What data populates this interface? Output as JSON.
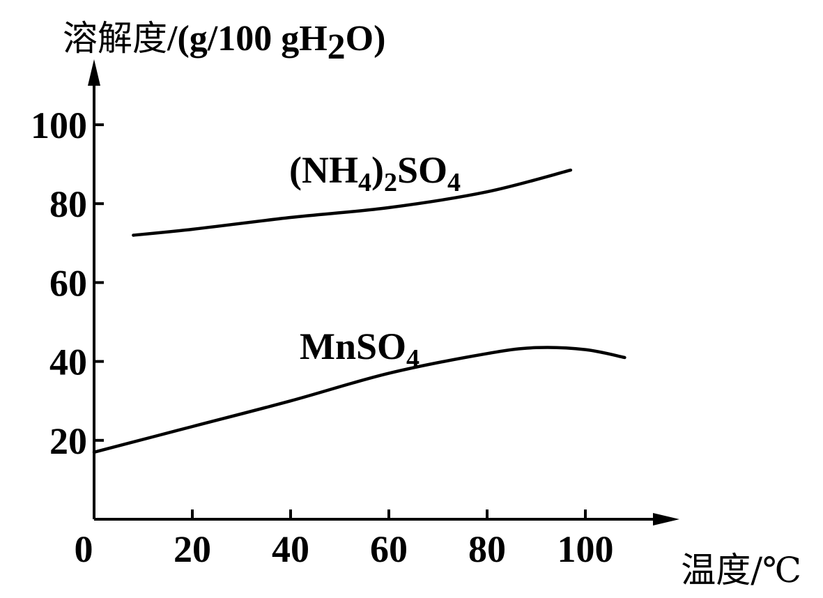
{
  "chart_data": {
    "type": "line",
    "ylabel": "溶解度/(g/100 gH₂O)",
    "ylabel_parts": {
      "main": "溶解度",
      "unit_prefix": "/(g/100 gH",
      "sub": "2",
      "unit_suffix": "O)"
    },
    "xlabel": "温度/℃",
    "x_ticks": [
      0,
      20,
      40,
      60,
      80,
      100
    ],
    "y_ticks": [
      20,
      40,
      60,
      80,
      100
    ],
    "xlim": [
      0,
      118
    ],
    "ylim": [
      0,
      115
    ],
    "grid": false,
    "series": [
      {
        "name": "(NH₄)₂SO₄",
        "label_parts": [
          "(NH",
          "4",
          ")",
          "2",
          "SO",
          "4"
        ],
        "x": [
          8,
          20,
          40,
          60,
          80,
          97
        ],
        "y": [
          72,
          73.5,
          76.5,
          79,
          83,
          88.5
        ]
      },
      {
        "name": "MnSO₄",
        "label_parts": [
          "MnSO",
          "4"
        ],
        "x": [
          0,
          20,
          40,
          60,
          80,
          90,
          100,
          108
        ],
        "y": [
          17,
          23.5,
          30,
          37,
          42,
          43.5,
          43,
          41
        ]
      }
    ]
  }
}
